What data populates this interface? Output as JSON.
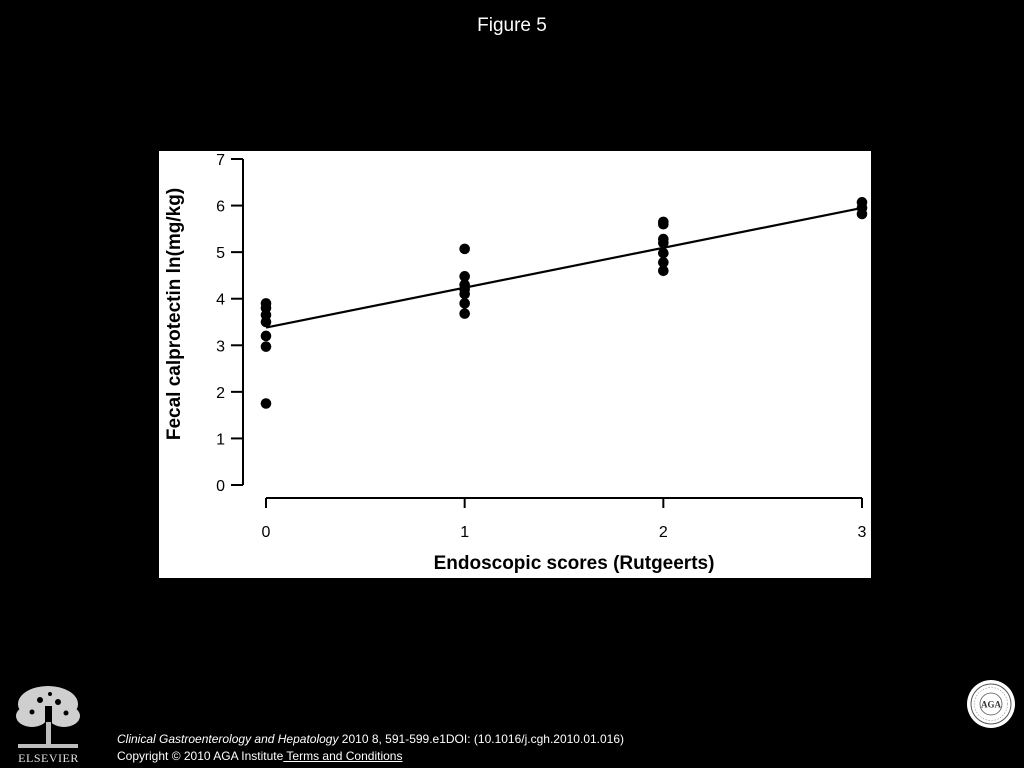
{
  "slide": {
    "title": "Figure 5"
  },
  "chart_data": {
    "type": "scatter",
    "title": "",
    "xlabel": "Endoscopic scores (Rutgeerts)",
    "ylabel": "Fecal calprotectin ln(mg/kg)",
    "xlim": [
      0,
      3
    ],
    "ylim": [
      0,
      7
    ],
    "xticks": [
      0,
      1,
      2,
      3
    ],
    "yticks": [
      0,
      1,
      2,
      3,
      4,
      5,
      6,
      7
    ],
    "grid": false,
    "legend": "none",
    "colors": {
      "background": "#ffffff",
      "marks": "#000000"
    },
    "points": [
      {
        "x": 0,
        "y": 3.9
      },
      {
        "x": 0,
        "y": 3.8
      },
      {
        "x": 0,
        "y": 3.65
      },
      {
        "x": 0,
        "y": 3.5
      },
      {
        "x": 0,
        "y": 3.2
      },
      {
        "x": 0,
        "y": 2.97
      },
      {
        "x": 0,
        "y": 1.75
      },
      {
        "x": 1,
        "y": 5.07
      },
      {
        "x": 1,
        "y": 4.48
      },
      {
        "x": 1,
        "y": 4.3
      },
      {
        "x": 1,
        "y": 4.2
      },
      {
        "x": 1,
        "y": 4.1
      },
      {
        "x": 1,
        "y": 3.9
      },
      {
        "x": 1,
        "y": 3.68
      },
      {
        "x": 2,
        "y": 5.65
      },
      {
        "x": 2,
        "y": 5.6
      },
      {
        "x": 2,
        "y": 5.28
      },
      {
        "x": 2,
        "y": 5.2
      },
      {
        "x": 2,
        "y": 4.98
      },
      {
        "x": 2,
        "y": 4.78
      },
      {
        "x": 2,
        "y": 4.6
      },
      {
        "x": 3,
        "y": 6.07
      },
      {
        "x": 3,
        "y": 5.95
      },
      {
        "x": 3,
        "y": 5.82
      }
    ],
    "regression_line": {
      "x": [
        0,
        3
      ],
      "y": [
        3.38,
        5.95
      ]
    }
  },
  "footer": {
    "journal": "Clinical Gastroenterology and Hepatology",
    "citation_rest": " 2010 8, 591-599.e1DOI: (10.1016/j.cgh.2010.01.016)",
    "copyright": "Copyright © 2010 AGA Institute",
    "terms_link": " Terms and Conditions",
    "publisher_logo_text": "ELSEVIER",
    "seal_text": "AGA"
  }
}
